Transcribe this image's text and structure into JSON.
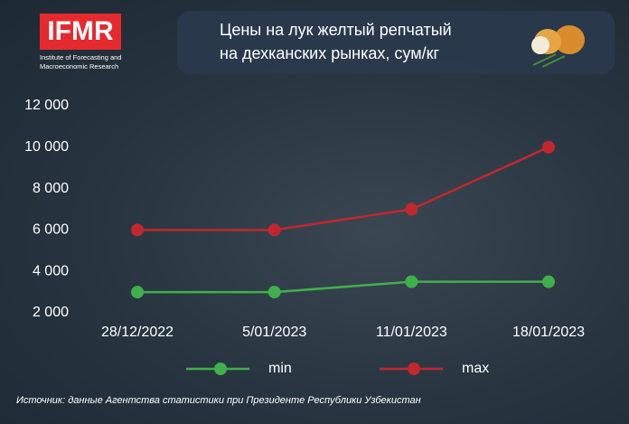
{
  "logo": {
    "name": "IFMR",
    "subtitle": [
      "Institute of Forecasting and",
      "Macroeconomic Research"
    ]
  },
  "source": "Источник: данные Агентства статистики при Президенте Республики Узбекистан",
  "chart_data": {
    "type": "line",
    "title": [
      "Цены на лук желтый репчатый",
      "на дехканских рынках, сум/кг"
    ],
    "categories": [
      "28/12/2022",
      "5/01/2023",
      "11/01/2023",
      "18/01/2023"
    ],
    "series": [
      {
        "name": "min",
        "color": "#3fb04a",
        "values": [
          3000,
          3000,
          3500,
          3500
        ]
      },
      {
        "name": "max",
        "color": "#c1272d",
        "values": [
          6000,
          6000,
          7000,
          10000
        ]
      }
    ],
    "ylim": [
      2000,
      12000
    ],
    "yticks": [
      {
        "value": 2000,
        "label": "2 000"
      },
      {
        "value": 4000,
        "label": "4 000"
      },
      {
        "value": 6000,
        "label": "6 000"
      },
      {
        "value": 8000,
        "label": "8 000"
      },
      {
        "value": 10000,
        "label": "10 000"
      },
      {
        "value": 12000,
        "label": "12 000"
      }
    ],
    "grid": false
  }
}
